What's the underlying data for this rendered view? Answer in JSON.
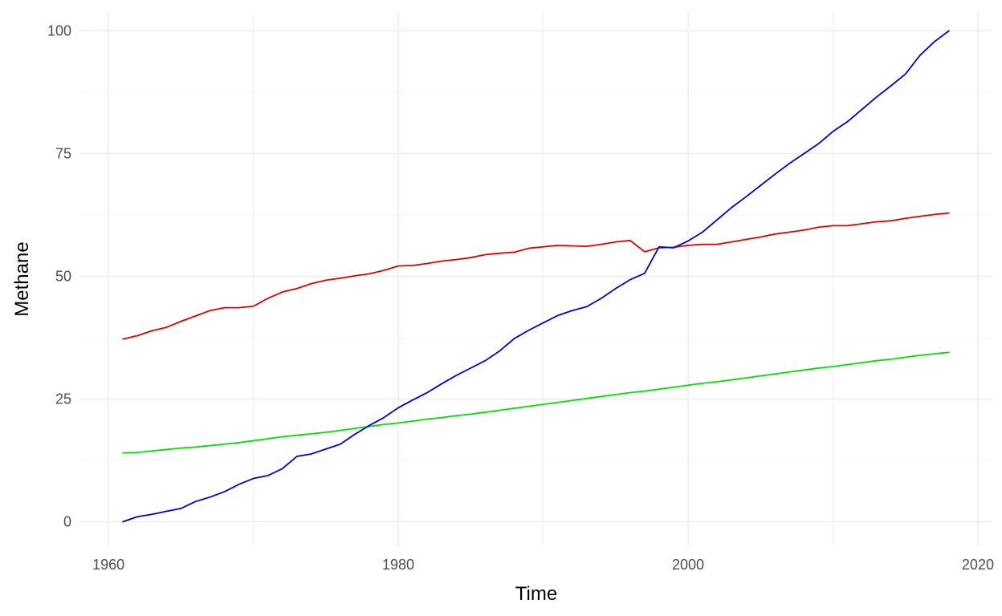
{
  "chart_data": {
    "type": "line",
    "title": "",
    "xlabel": "Time",
    "ylabel": "Methane",
    "xlim": [
      1958,
      2021
    ],
    "ylim": [
      -5,
      104
    ],
    "x_ticks": [
      1960,
      1980,
      2000,
      2020
    ],
    "y_ticks": [
      0,
      25,
      50,
      75,
      100
    ],
    "grid": true,
    "legend": "none",
    "x": [
      1961,
      1962,
      1963,
      1964,
      1965,
      1966,
      1967,
      1968,
      1969,
      1970,
      1971,
      1972,
      1973,
      1974,
      1975,
      1976,
      1977,
      1978,
      1979,
      1980,
      1981,
      1982,
      1983,
      1984,
      1985,
      1986,
      1987,
      1988,
      1989,
      1990,
      1991,
      1992,
      1993,
      1994,
      1995,
      1996,
      1997,
      1998,
      1999,
      2000,
      2001,
      2002,
      2003,
      2004,
      2005,
      2006,
      2007,
      2008,
      2009,
      2010,
      2011,
      2012,
      2013,
      2014,
      2015,
      2016,
      2017,
      2018
    ],
    "series": [
      {
        "color": "#e00000",
        "values": [
          37.2,
          37.9,
          38.9,
          39.6,
          40.8,
          41.9,
          43.0,
          43.6,
          43.6,
          43.9,
          45.5,
          46.8,
          47.5,
          48.5,
          49.2,
          49.6,
          50.1,
          50.5,
          51.2,
          52.1,
          52.2,
          52.6,
          53.1,
          53.4,
          53.8,
          54.4,
          54.7,
          54.9,
          55.7,
          56.0,
          56.3,
          56.2,
          56.1,
          56.5,
          57.0,
          57.3,
          55.0,
          55.8,
          55.9,
          56.3,
          56.5,
          56.5,
          57.0,
          57.5,
          58.0,
          58.6,
          59.0,
          59.4,
          60.0,
          60.3,
          60.3,
          60.7,
          61.1,
          61.3,
          61.8,
          62.2,
          62.6,
          62.9
        ]
      },
      {
        "color": "#00e000",
        "values": [
          14.0,
          14.1,
          14.4,
          14.7,
          15.0,
          15.2,
          15.5,
          15.8,
          16.1,
          16.5,
          16.9,
          17.3,
          17.6,
          17.9,
          18.2,
          18.6,
          19.0,
          19.4,
          19.8,
          20.1,
          20.5,
          20.9,
          21.2,
          21.6,
          21.9,
          22.3,
          22.7,
          23.1,
          23.5,
          23.9,
          24.3,
          24.7,
          25.1,
          25.5,
          25.9,
          26.3,
          26.6,
          27.0,
          27.4,
          27.8,
          28.2,
          28.5,
          28.9,
          29.3,
          29.7,
          30.1,
          30.5,
          30.9,
          31.3,
          31.6,
          32.0,
          32.4,
          32.8,
          33.1,
          33.5,
          33.9,
          34.2,
          34.5
        ]
      },
      {
        "color": "#0000d8",
        "values": [
          0.0,
          1.0,
          1.5,
          2.1,
          2.7,
          4.1,
          5.0,
          6.1,
          7.6,
          8.8,
          9.4,
          10.8,
          13.3,
          13.8,
          14.8,
          15.8,
          17.8,
          19.6,
          21.2,
          23.2,
          24.8,
          26.3,
          28.1,
          29.8,
          31.3,
          32.8,
          34.8,
          37.3,
          39.0,
          40.5,
          42.0,
          43.0,
          43.8,
          45.5,
          47.5,
          49.3,
          50.6,
          56.0,
          55.8,
          57.2,
          59.0,
          61.5,
          64.0,
          66.2,
          68.5,
          70.8,
          73.0,
          75.0,
          77.0,
          79.5,
          81.5,
          84.0,
          86.5,
          88.8,
          91.2,
          95.0,
          97.8,
          100.0
        ]
      }
    ]
  }
}
